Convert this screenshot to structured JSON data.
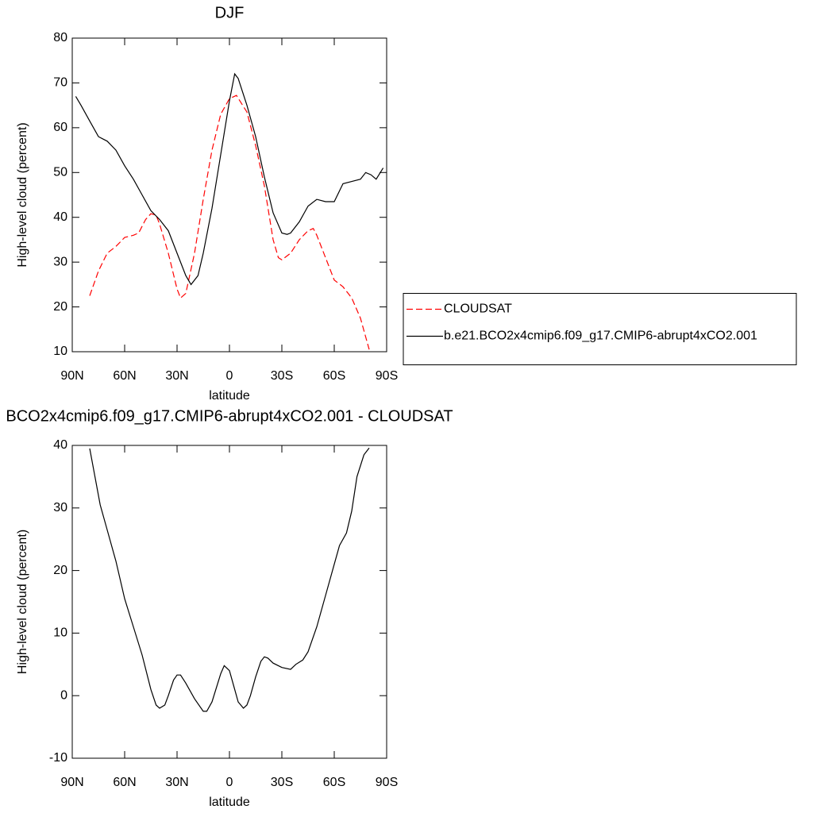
{
  "chart_data": [
    {
      "type": "line",
      "title": "DJF",
      "xlabel": "latitude",
      "ylabel": "High-level cloud (percent)",
      "xlim": [
        90,
        -90
      ],
      "xticks": [
        {
          "value": 90,
          "label": "90N"
        },
        {
          "value": 60,
          "label": "60N"
        },
        {
          "value": 30,
          "label": "30N"
        },
        0,
        {
          "value": -30,
          "label": "30S"
        },
        {
          "value": -60,
          "label": "60S"
        },
        {
          "value": -90,
          "label": "90S"
        }
      ],
      "ylim": [
        10,
        80
      ],
      "yticks": [
        10,
        20,
        30,
        40,
        50,
        60,
        70,
        80
      ],
      "legend": "right",
      "series": [
        {
          "name": "CLOUDSAT",
          "color": "#ff0000",
          "dashed": true,
          "x": [
            80,
            75,
            70,
            65,
            60,
            55,
            52,
            48,
            45,
            42,
            40,
            35,
            30,
            28,
            25,
            20,
            15,
            10,
            5,
            0,
            -4,
            -10,
            -15,
            -20,
            -25,
            -28,
            -30,
            -35,
            -40,
            -45,
            -48,
            -50,
            -55,
            -60,
            -65,
            -70,
            -75,
            -80
          ],
          "values": [
            22.5,
            28,
            32,
            33.5,
            35.5,
            36,
            36.5,
            39.5,
            40.8,
            40.5,
            38.5,
            32,
            24,
            22,
            23,
            32,
            44,
            55,
            63,
            66.5,
            67.2,
            63.5,
            56,
            47,
            35,
            31,
            30.5,
            32,
            35,
            37,
            37.5,
            36,
            31,
            26,
            24.5,
            22,
            17.5,
            10.5
          ]
        },
        {
          "name": "b.e21.BCO2x4cmip6.f09_g17.CMIP6-abrupt4xCO2.001",
          "color": "#000000",
          "dashed": false,
          "x": [
            88,
            85,
            80,
            75,
            70,
            65,
            60,
            55,
            50,
            45,
            40,
            35,
            30,
            25,
            22,
            18,
            15,
            10,
            5,
            0,
            -3,
            -5,
            -10,
            -15,
            -20,
            -25,
            -30,
            -33,
            -35,
            -40,
            -45,
            -50,
            -55,
            -60,
            -65,
            -70,
            -75,
            -78,
            -81,
            -84,
            -88
          ],
          "values": [
            67,
            65,
            61.5,
            58,
            57,
            55,
            51.5,
            48.5,
            45,
            41.5,
            39.5,
            37,
            32,
            27,
            25,
            27,
            32,
            42,
            54,
            66,
            72,
            71,
            65,
            58,
            49,
            41,
            36.5,
            36.2,
            36.5,
            39,
            42.5,
            44,
            43.5,
            43.5,
            47.5,
            48,
            48.5,
            50,
            49.5,
            48.5,
            51
          ]
        }
      ]
    },
    {
      "type": "line",
      "title": "BCO2x4cmip6.f09_g17.CMIP6-abrupt4xCO2.001 - CLOUDSAT",
      "xlabel": "latitude",
      "ylabel": "High-level cloud (percent)",
      "xlim": [
        90,
        -90
      ],
      "xticks": [
        {
          "value": 90,
          "label": "90N"
        },
        {
          "value": 60,
          "label": "60N"
        },
        {
          "value": 30,
          "label": "30N"
        },
        0,
        {
          "value": -30,
          "label": "30S"
        },
        {
          "value": -60,
          "label": "60S"
        },
        {
          "value": -90,
          "label": "90S"
        }
      ],
      "ylim": [
        -10,
        40
      ],
      "yticks": [
        -10,
        0,
        10,
        20,
        30,
        40
      ],
      "series": [
        {
          "color": "#000000",
          "dashed": false,
          "x": [
            80,
            77,
            74,
            70,
            65,
            60,
            55,
            50,
            45,
            42,
            40,
            37,
            35,
            32,
            30,
            28,
            25,
            20,
            15,
            13,
            10,
            5,
            3,
            0,
            -3,
            -5,
            -8,
            -10,
            -12,
            -15,
            -18,
            -20,
            -22,
            -25,
            -30,
            -35,
            -38,
            -42,
            -45,
            -50,
            -55,
            -60,
            -63,
            -67,
            -70,
            -73,
            -77,
            -80
          ],
          "values": [
            39.5,
            35,
            30.5,
            26.5,
            21.5,
            15.5,
            11,
            6.5,
            1,
            -1.5,
            -2,
            -1.5,
            0,
            2.5,
            3.3,
            3.3,
            2,
            -0.5,
            -2.5,
            -2.5,
            -1,
            3.5,
            4.8,
            4,
            1,
            -1,
            -2,
            -1.5,
            0,
            3,
            5.5,
            6.2,
            6,
            5.2,
            4.5,
            4.2,
            5,
            5.7,
            7,
            11,
            16,
            21,
            24,
            26,
            29.5,
            35,
            38.5,
            39.6
          ]
        }
      ]
    }
  ]
}
